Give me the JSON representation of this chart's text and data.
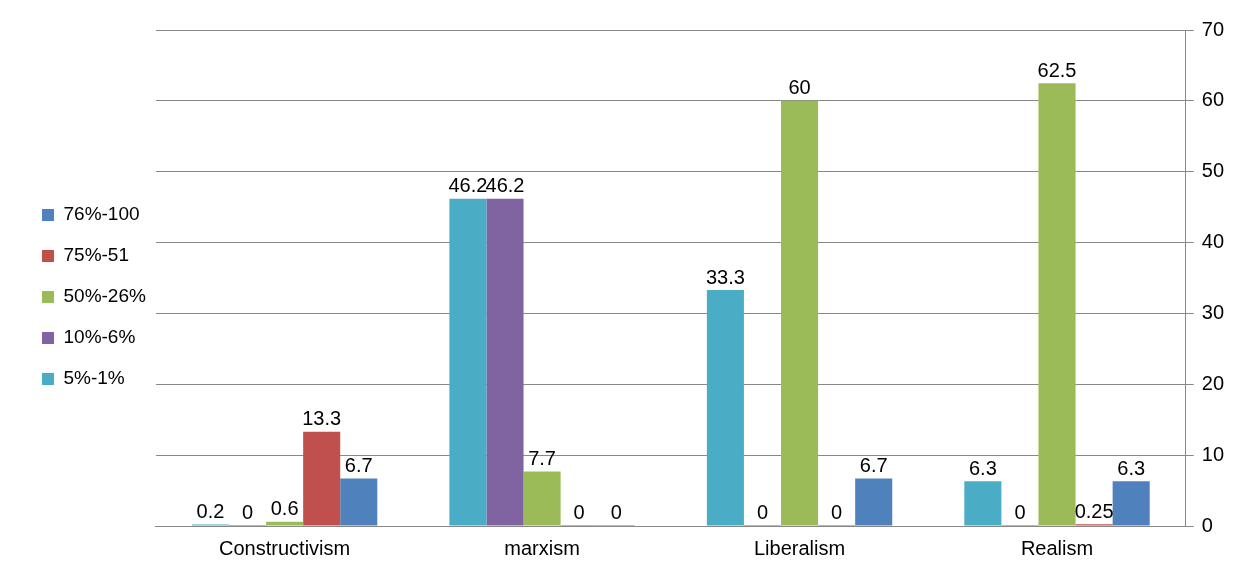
{
  "chart_data": {
    "type": "bar",
    "categories": [
      "Constructivism",
      "marxism",
      "Liberalism",
      "Realism"
    ],
    "series": [
      {
        "name": "5%-1%",
        "color": "#4bacc6",
        "values": [
          0.2,
          46.2,
          33.3,
          6.3
        ]
      },
      {
        "name": "10%-6%",
        "color": "#8064a2",
        "values": [
          0,
          46.2,
          0,
          0
        ]
      },
      {
        "name": "50%-26%",
        "color": "#9bbb59",
        "values": [
          0.6,
          7.7,
          60,
          62.5
        ]
      },
      {
        "name": "75%-51",
        "color": "#c0504d",
        "values": [
          13.3,
          0,
          0,
          0.25
        ]
      },
      {
        "name": "76%-100",
        "color": "#4f81bd",
        "values": [
          6.7,
          0,
          6.7,
          6.3
        ]
      }
    ],
    "ylim": [
      0,
      70
    ],
    "yticks": [
      0,
      10,
      20,
      30,
      40,
      50,
      60,
      70
    ],
    "grid": "y",
    "legend": "left",
    "data_labels": true
  }
}
